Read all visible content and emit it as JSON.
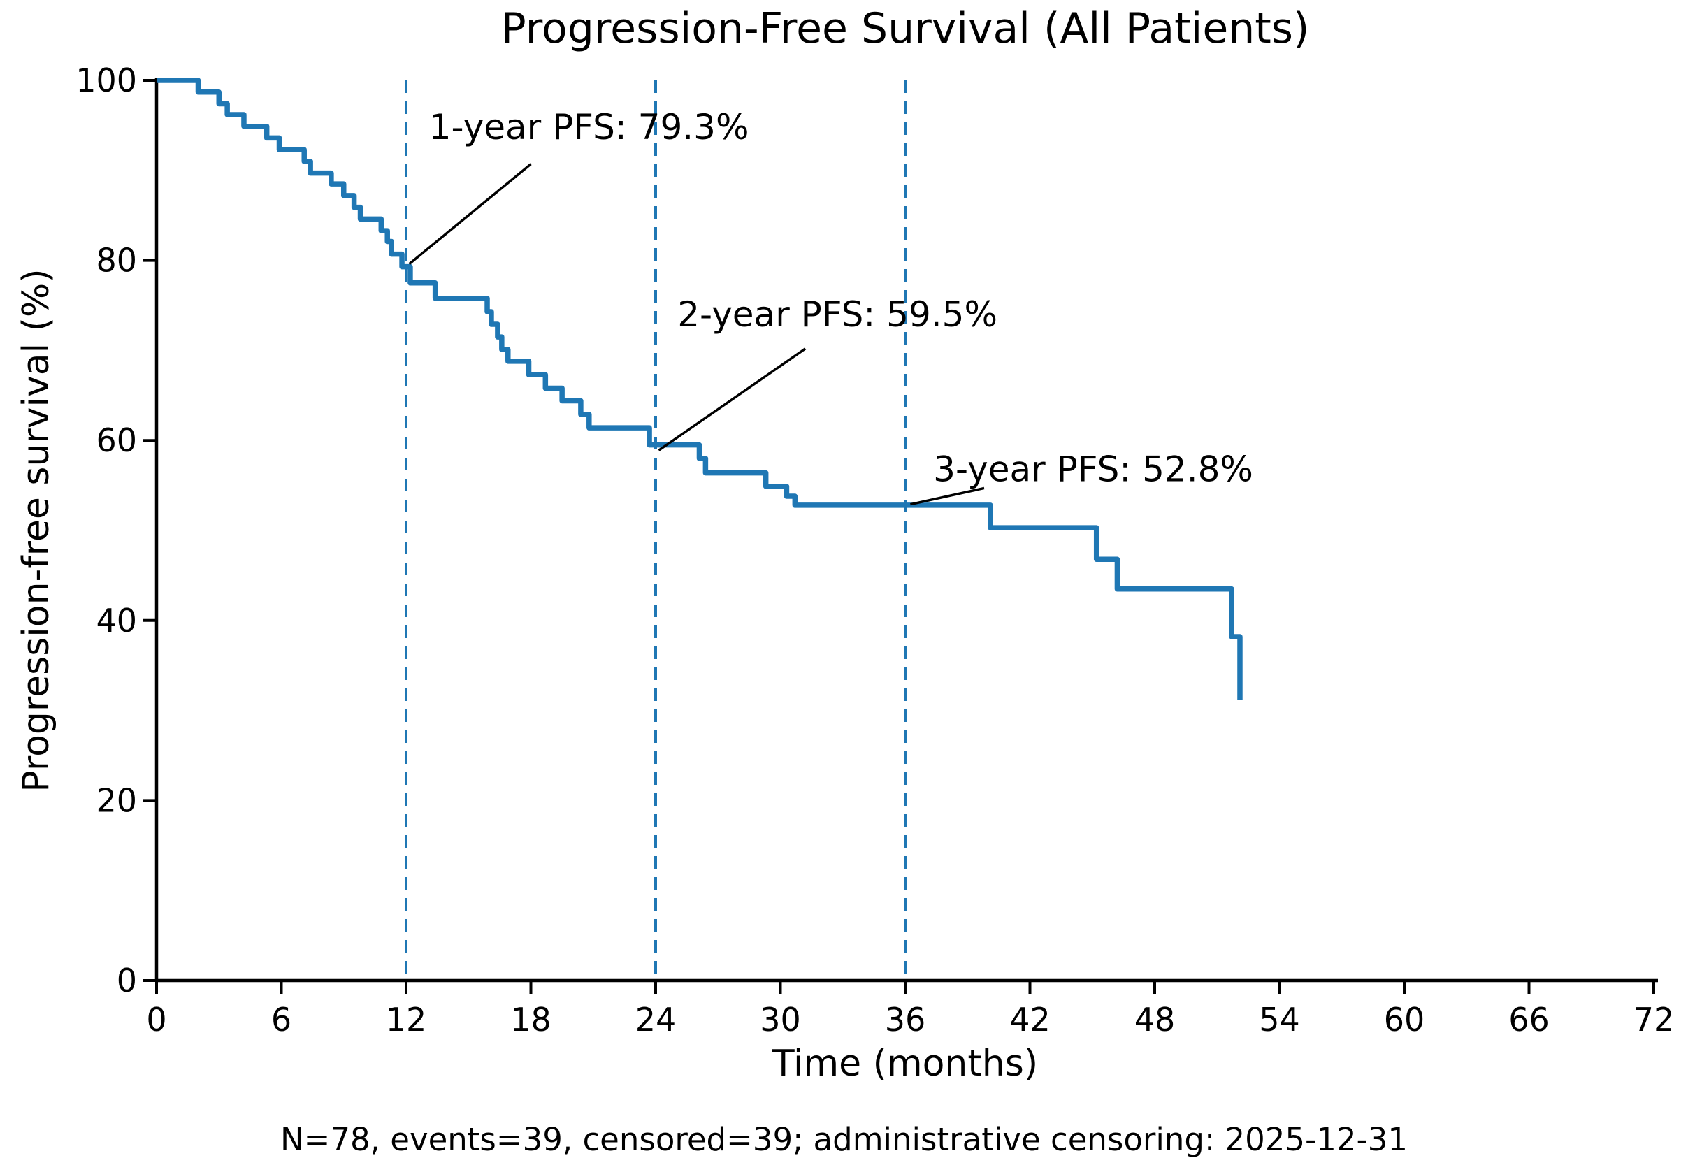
{
  "chart_data": {
    "type": "line",
    "chart_kind": "kaplan_meier_step_curve",
    "title": "Progression-Free Survival (All Patients)",
    "xlabel": "Time (months)",
    "ylabel": "Progression-free survival (%)",
    "footnote": "N=78, events=39, censored=39; administrative censoring: 2025-12-31",
    "n_patients": 78,
    "n_events": 39,
    "n_censored": 39,
    "admin_censoring_date": "2025-12-31",
    "xlim": [
      0,
      72
    ],
    "ylim": [
      0,
      100
    ],
    "x_ticks": [
      0,
      6,
      12,
      18,
      24,
      30,
      36,
      42,
      48,
      54,
      60,
      66,
      72
    ],
    "y_ticks": [
      0,
      20,
      40,
      60,
      80,
      100
    ],
    "grid": false,
    "legend": "none",
    "line_color": "#1f77b4",
    "milestone_line_color": "#1f77b4",
    "axis_color": "#000000",
    "annotation_color": "#000000",
    "milestone_months": [
      12,
      24,
      36
    ],
    "annotations": [
      {
        "label": "1-year PFS: 79.3%",
        "months": 12,
        "pfs_percent": 79.3,
        "text_pos": {
          "t": 13.1,
          "s": 96.5
        },
        "arrow_tail": {
          "t": 18.0,
          "s": 90.7
        },
        "arrow_tip": {
          "t": 12.15,
          "s": 79.6
        }
      },
      {
        "label": "2-year PFS: 59.5%",
        "months": 24,
        "pfs_percent": 59.5,
        "text_pos": {
          "t": 25.05,
          "s": 75.7
        },
        "arrow_tail": {
          "t": 31.2,
          "s": 70.2
        },
        "arrow_tip": {
          "t": 24.15,
          "s": 58.9
        }
      },
      {
        "label": "3-year PFS: 52.8%",
        "months": 36,
        "pfs_percent": 52.8,
        "text_pos": {
          "t": 37.35,
          "s": 58.5
        },
        "arrow_tail": {
          "t": 39.8,
          "s": 54.7
        },
        "arrow_tip": {
          "t": 36.25,
          "s": 52.9
        }
      }
    ],
    "steps": [
      {
        "t": 0.0,
        "s": 100.0
      },
      {
        "t": 2.0,
        "s": 98.7
      },
      {
        "t": 3.0,
        "s": 97.4
      },
      {
        "t": 3.4,
        "s": 96.2
      },
      {
        "t": 4.2,
        "s": 94.9
      },
      {
        "t": 5.3,
        "s": 93.6
      },
      {
        "t": 5.9,
        "s": 92.3
      },
      {
        "t": 7.1,
        "s": 91.0
      },
      {
        "t": 7.4,
        "s": 89.7
      },
      {
        "t": 8.4,
        "s": 88.5
      },
      {
        "t": 9.0,
        "s": 87.2
      },
      {
        "t": 9.5,
        "s": 85.9
      },
      {
        "t": 9.8,
        "s": 84.6
      },
      {
        "t": 10.8,
        "s": 83.3
      },
      {
        "t": 11.1,
        "s": 82.1
      },
      {
        "t": 11.3,
        "s": 80.7
      },
      {
        "t": 11.8,
        "s": 79.3
      },
      {
        "t": 12.2,
        "s": 77.5
      },
      {
        "t": 13.4,
        "s": 75.8
      },
      {
        "t": 15.9,
        "s": 74.3
      },
      {
        "t": 16.1,
        "s": 72.9
      },
      {
        "t": 16.4,
        "s": 71.5
      },
      {
        "t": 16.6,
        "s": 70.1
      },
      {
        "t": 16.9,
        "s": 68.8
      },
      {
        "t": 17.9,
        "s": 67.3
      },
      {
        "t": 18.7,
        "s": 65.8
      },
      {
        "t": 19.5,
        "s": 64.4
      },
      {
        "t": 20.4,
        "s": 62.9
      },
      {
        "t": 20.8,
        "s": 61.4
      },
      {
        "t": 23.7,
        "s": 59.5
      },
      {
        "t": 26.1,
        "s": 58.0
      },
      {
        "t": 26.4,
        "s": 56.4
      },
      {
        "t": 29.3,
        "s": 54.9
      },
      {
        "t": 30.3,
        "s": 53.8
      },
      {
        "t": 30.7,
        "s": 52.8
      },
      {
        "t": 40.1,
        "s": 50.3
      },
      {
        "t": 45.2,
        "s": 46.8
      },
      {
        "t": 46.2,
        "s": 43.5
      },
      {
        "t": 51.7,
        "s": 38.2
      },
      {
        "t": 52.1,
        "s": 31.2
      }
    ]
  }
}
